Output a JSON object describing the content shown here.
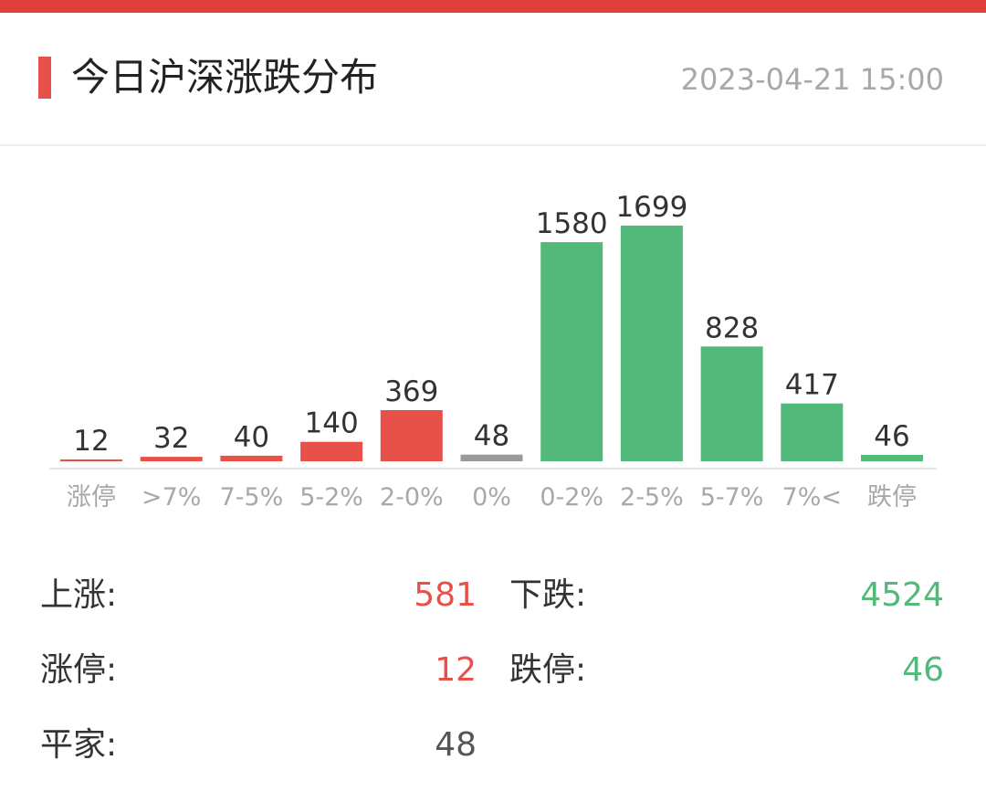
{
  "header": {
    "title": "今日沪深涨跌分布",
    "timestamp": "2023-04-21 15:00"
  },
  "colors": {
    "up": "#e8504a",
    "down": "#52b97a",
    "flat": "#999999",
    "axis_label": "#a8a8a8",
    "value_label": "#333333"
  },
  "chart_data": {
    "type": "bar",
    "categories": [
      "涨停",
      ">7%",
      "7-5%",
      "5-2%",
      "2-0%",
      "0%",
      "0-2%",
      "2-5%",
      "5-7%",
      "7%<",
      "跌停"
    ],
    "values": [
      12,
      32,
      40,
      140,
      369,
      48,
      1580,
      1699,
      828,
      417,
      46
    ],
    "bar_colors": [
      "up",
      "up",
      "up",
      "up",
      "up",
      "flat",
      "down",
      "down",
      "down",
      "down",
      "down"
    ],
    "title": "",
    "xlabel": "",
    "ylabel": "",
    "ylim": [
      0,
      1699
    ],
    "grid": false,
    "legend": "none"
  },
  "stats": {
    "up": {
      "label": "上涨:",
      "value": "581"
    },
    "down": {
      "label": "下跌:",
      "value": "4524"
    },
    "limit_up": {
      "label": "涨停:",
      "value": "12"
    },
    "limit_down": {
      "label": "跌停:",
      "value": "46"
    },
    "flat": {
      "label": "平家:",
      "value": "48"
    }
  }
}
